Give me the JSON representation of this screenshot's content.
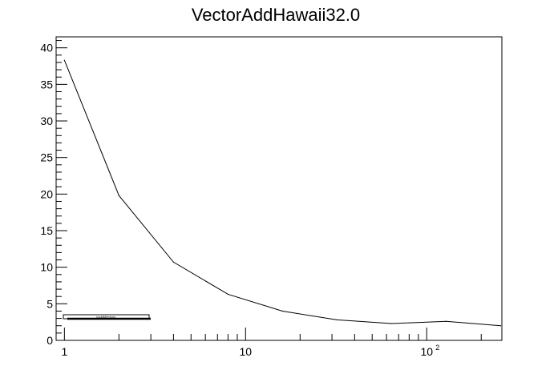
{
  "chart_data": {
    "type": "line",
    "title": "VectorAddHawaii32.0",
    "xlabel": "",
    "ylabel": "",
    "xscale": "log",
    "xlim": [
      0.9,
      260
    ],
    "ylim": [
      0,
      41.5
    ],
    "grid": false,
    "legend_placement": "bottom-left",
    "legend_entries": [
      "cudaMemcpy"
    ],
    "x": [
      1,
      2,
      4,
      8,
      16,
      32,
      64,
      128,
      256
    ],
    "series": [
      {
        "values": [
          38.3,
          19.8,
          10.7,
          6.3,
          4.0,
          2.8,
          2.3,
          2.6,
          2.0
        ]
      }
    ],
    "y_ticks": [
      {
        "value": 0,
        "label": "0"
      },
      {
        "value": 5,
        "label": "5"
      },
      {
        "value": 10,
        "label": "10"
      },
      {
        "value": 15,
        "label": "15"
      },
      {
        "value": 20,
        "label": "20"
      },
      {
        "value": 25,
        "label": "25"
      },
      {
        "value": 30,
        "label": "30"
      },
      {
        "value": 35,
        "label": "35"
      },
      {
        "value": 40,
        "label": "40"
      }
    ],
    "x_ticks": [
      {
        "value": 1,
        "label": "1",
        "exp": ""
      },
      {
        "value": 10,
        "label": "10",
        "exp": ""
      },
      {
        "value": 100,
        "label": "10",
        "exp": "2"
      }
    ],
    "line_color": "#000000"
  }
}
